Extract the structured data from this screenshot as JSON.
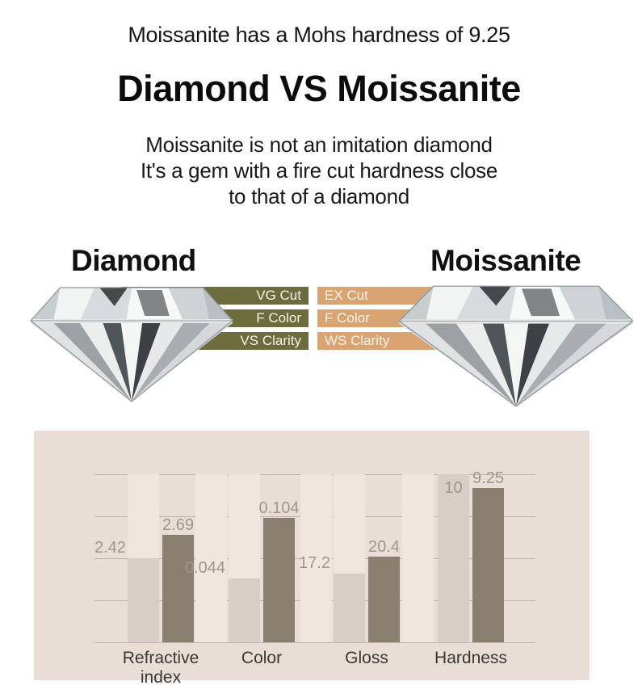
{
  "page": {
    "headline": "Moissanite has a Mohs hardness of 9.25",
    "title": "Diamond VS Moissanite",
    "intro_lines": [
      "Moissanite is not an imitation diamond",
      "It's a gem with a fire cut hardness close",
      "to that of a diamond"
    ]
  },
  "versus": {
    "left_header": "Diamond",
    "right_header": "Moissanite",
    "rows": [
      {
        "left": "VG Cut",
        "right": "EX Cut"
      },
      {
        "left": "F Color",
        "right": "F Color"
      },
      {
        "left": "VS Clarity",
        "right": "WS Clarity"
      }
    ],
    "colors": {
      "left_bar": "#6c6c3d",
      "right_bar": "#d9a472",
      "bar_text": "#f6f2e8"
    }
  },
  "chart_data": {
    "type": "bar",
    "categories": [
      "Refractive index",
      "Color",
      "Gloss",
      "Hardness"
    ],
    "series": [
      {
        "name": "Diamond",
        "values": [
          2.42,
          0.044,
          17.2,
          10
        ],
        "labels": [
          "2.42",
          "0.044",
          "17.2",
          "10"
        ],
        "height_pct": [
          50,
          38,
          41,
          100
        ],
        "bar_color": "#d9cec5",
        "track_color": "#eee6df"
      },
      {
        "name": "Moissanite",
        "values": [
          2.69,
          0.104,
          20.4,
          9.25
        ],
        "labels": [
          "2.69",
          "0.104",
          "20.4",
          "9.25"
        ],
        "height_pct": [
          64,
          74,
          51,
          92
        ],
        "bar_color": "#8b7f6f"
      }
    ],
    "panel_color": "#e8ded6",
    "grid": true,
    "gridline_count": 5,
    "gridline_color": "#c2b4a8",
    "value_label_color": "#a0968c",
    "category_label_color": "#3b3734",
    "legend": "none"
  }
}
